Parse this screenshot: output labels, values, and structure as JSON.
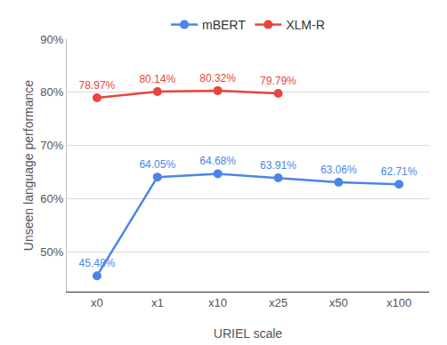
{
  "chart_data": {
    "type": "line",
    "x_label": "URIEL scale",
    "y_label": "Unseen language performance",
    "categories": [
      "x0",
      "x1",
      "x10",
      "x25",
      "x50",
      "x100"
    ],
    "series": [
      {
        "name": "mBERT",
        "color": "#4a86e8",
        "marker": "circle",
        "values": [
          45.48,
          64.05,
          64.68,
          63.91,
          63.06,
          62.71
        ],
        "value_labels": [
          "45.48%",
          "64.05%",
          "64.68%",
          "63.91%",
          "63.06%",
          "62.71%"
        ]
      },
      {
        "name": "XLM-R",
        "color": "#e8453c",
        "marker": "circle",
        "values": [
          78.97,
          80.14,
          80.32,
          79.79,
          null,
          null
        ],
        "value_labels": [
          "78.97%",
          "80.14%",
          "80.32%",
          "79.79%",
          null,
          null
        ]
      }
    ],
    "ylim": [
      42.5,
      90
    ],
    "yticks": [
      {
        "value": 50,
        "label": "50%"
      },
      {
        "value": 60,
        "label": "60%"
      },
      {
        "value": 70,
        "label": "70%"
      },
      {
        "value": 80,
        "label": "80%"
      },
      {
        "value": 90,
        "label": "90%"
      }
    ],
    "grid": true,
    "legend": "top",
    "data_labels": true
  }
}
